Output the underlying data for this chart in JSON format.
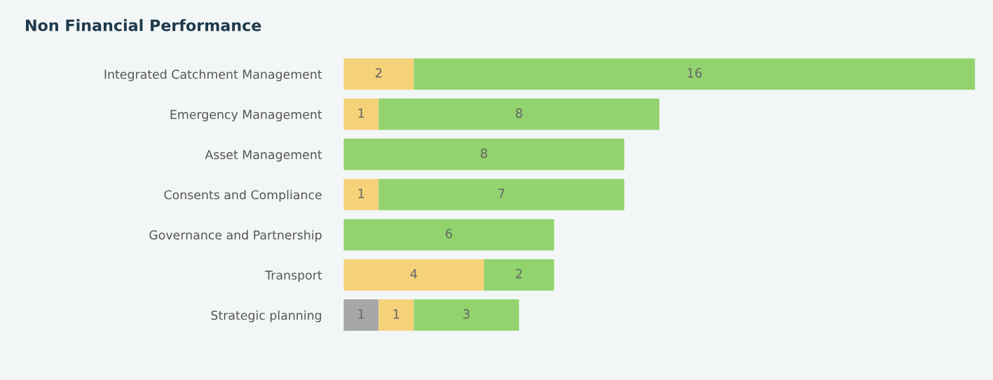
{
  "chart_data": {
    "type": "bar",
    "orientation": "horizontal",
    "stacked": true,
    "title": "Non Financial Performance",
    "categories": [
      "Integrated Catchment Management",
      "Emergency Management",
      "Asset Management",
      "Consents and Compliance",
      "Governance and Partnership",
      "Transport",
      "Strategic planning"
    ],
    "series": [
      {
        "color": "#a6a6a6",
        "values": [
          null,
          null,
          null,
          null,
          null,
          null,
          1
        ]
      },
      {
        "color": "#f5d27a",
        "values": [
          2,
          1,
          null,
          1,
          null,
          4,
          1
        ]
      },
      {
        "color": "#92d36e",
        "values": [
          16,
          8,
          8,
          7,
          6,
          2,
          3
        ]
      }
    ],
    "data_labels": true,
    "grid": false,
    "legend": false
  }
}
